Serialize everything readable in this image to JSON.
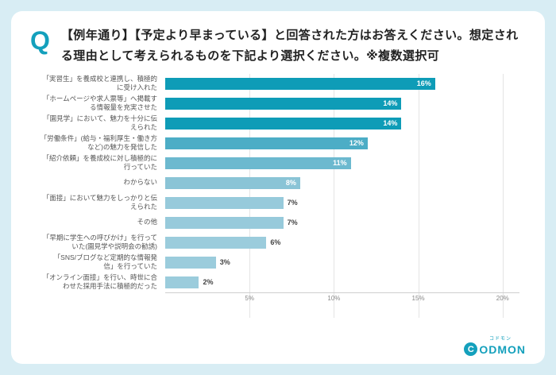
{
  "page": {
    "background": "#d8edf4",
    "card_background": "#ffffff"
  },
  "header": {
    "q_mark": "Q",
    "q_color": "#14a0bc",
    "question": "【例年通り】【予定より早まっている】と回答された方はお答えください。想定される理由として考えられるものを下記より選択ください。※複数選択可"
  },
  "chart_data": {
    "type": "bar",
    "orientation": "horizontal",
    "title": "",
    "unit": "%",
    "categories": [
      "「実習生」を養成校と連携し、積極的\nに受け入れた",
      "「ホームページや求人票等」へ掲載す\nる情報量を充実させた",
      "「園見学」において、魅力を十分に伝\nえられた",
      "「労働条件」(給与・福利厚生・働き方\nなど)の魅力を発信した",
      "「紹介依頼」を養成校に対し積極的に\n行っていた",
      "わからない",
      "「面接」において魅力をしっかりと伝\nえられた",
      "その他",
      "「早期に学生への呼びかけ」を行って\nいた(園見学や説明会の勧誘)",
      "「SNS/ブログなど定期的な情報発\n信」を行っていた",
      "「オンライン面接」を行い、時世に合\nわせた採用手法に積極的だった"
    ],
    "values": [
      16,
      14,
      14,
      12,
      11,
      8,
      7,
      7,
      6,
      3,
      2
    ],
    "bar_colors": [
      "#0e9cb7",
      "#0e9cb7",
      "#0e9cb7",
      "#4cadc6",
      "#6cb9cf",
      "#8ac4d6",
      "#97cadb",
      "#97cadb",
      "#9bccdc",
      "#9bccdc",
      "#9bccdc"
    ],
    "label_inside": [
      true,
      true,
      true,
      true,
      true,
      true,
      false,
      false,
      false,
      false,
      false
    ],
    "x_ticks": [
      5,
      10,
      15,
      20
    ],
    "x_max": 21,
    "grid": true,
    "legend": "none"
  },
  "footer": {
    "logo_sub": "コドモン",
    "logo_circle_letter": "C",
    "logo_text": "ODMON",
    "logo_color": "#14a0bc"
  }
}
